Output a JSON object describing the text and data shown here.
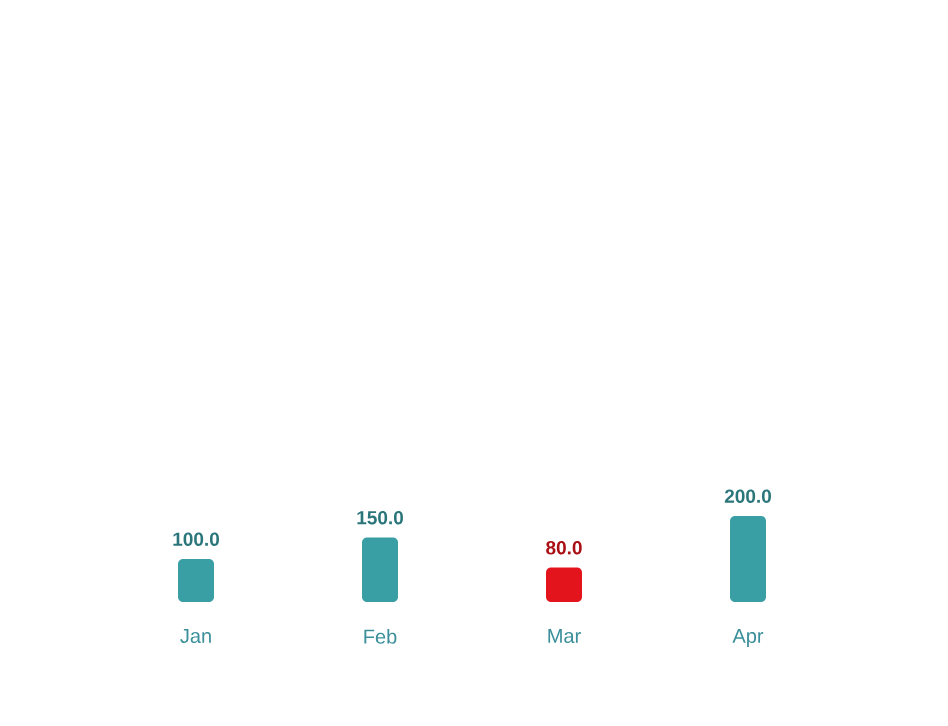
{
  "chart_data": {
    "type": "bar",
    "categories": [
      "Jan",
      "Feb",
      "Mar",
      "Apr"
    ],
    "values": [
      100,
      150,
      80,
      200
    ],
    "colors": [
      "#3a9ea5",
      "#3a9ea5",
      "#e3141c",
      "#3a9ea5"
    ],
    "value_labels": [
      "100.0",
      "150.0",
      "80.0",
      "200.0"
    ]
  }
}
